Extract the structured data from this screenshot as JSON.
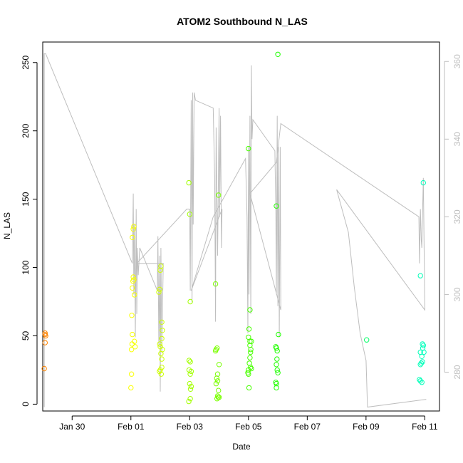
{
  "chart_data": {
    "type": "scatter",
    "title": "ATOM2 Southbound N_LAS",
    "xlabel": "Date",
    "ylabel": "N_LAS",
    "x_unit": "days relative to Feb 01",
    "xlim": [
      -3.0,
      10.5
    ],
    "ylim": [
      -5,
      265
    ],
    "y_ticks": [
      0,
      50,
      100,
      150,
      200,
      250
    ],
    "x_ticks": [
      {
        "label": "Jan 30",
        "value": -2
      },
      {
        "label": "Feb 01",
        "value": 0
      },
      {
        "label": "Feb 03",
        "value": 2
      },
      {
        "label": "Feb 05",
        "value": 4
      },
      {
        "label": "Feb 07",
        "value": 6
      },
      {
        "label": "Feb 09",
        "value": 8
      },
      {
        "label": "Feb 11",
        "value": 10
      }
    ],
    "right_axis": {
      "ylim": [
        270,
        365
      ],
      "ticks": [
        280,
        300,
        320,
        340,
        360
      ],
      "color": "#bebebe"
    },
    "right_series_line": [
      [
        -2.95,
        271
      ],
      [
        -2.95,
        362
      ],
      [
        -2.9,
        362
      ],
      [
        0.05,
        308
      ],
      [
        0.08,
        326
      ],
      [
        0.1,
        300
      ],
      [
        0.12,
        318
      ],
      [
        0.15,
        289
      ],
      [
        0.18,
        322
      ],
      [
        0.2,
        295
      ],
      [
        0.22,
        312
      ],
      [
        0.25,
        305
      ],
      [
        0.3,
        312
      ],
      [
        0.9,
        301
      ],
      [
        0.92,
        315
      ],
      [
        0.95,
        287
      ],
      [
        0.98,
        310
      ],
      [
        1.0,
        275
      ],
      [
        1.02,
        312
      ],
      [
        1.05,
        285
      ],
      [
        1.1,
        308
      ],
      [
        0.2,
        308
      ],
      [
        1.9,
        322
      ],
      [
        2.0,
        322
      ],
      [
        2.02,
        301
      ],
      [
        2.05,
        350
      ],
      [
        2.08,
        298
      ],
      [
        2.1,
        352
      ],
      [
        2.12,
        318
      ],
      [
        2.15,
        352
      ],
      [
        2.2,
        350
      ],
      [
        2.8,
        348
      ],
      [
        2.85,
        330
      ],
      [
        2.88,
        293
      ],
      [
        2.9,
        343
      ],
      [
        2.95,
        310
      ],
      [
        3.0,
        348
      ],
      [
        3.02,
        320
      ],
      [
        3.05,
        346
      ],
      [
        3.08,
        312
      ],
      [
        3.1,
        322
      ],
      [
        2.05,
        301
      ],
      [
        2.8,
        320
      ],
      [
        3.9,
        335
      ],
      [
        3.95,
        320
      ],
      [
        3.98,
        290
      ],
      [
        4.0,
        338
      ],
      [
        4.02,
        300
      ],
      [
        4.05,
        346
      ],
      [
        4.08,
        295
      ],
      [
        4.1,
        359
      ],
      [
        4.12,
        340
      ],
      [
        4.15,
        345
      ],
      [
        4.9,
        337
      ],
      [
        4.93,
        322
      ],
      [
        4.95,
        300
      ],
      [
        4.98,
        346
      ],
      [
        5.0,
        297
      ],
      [
        5.02,
        338
      ],
      [
        5.05,
        289
      ],
      [
        5.08,
        338
      ],
      [
        5.1,
        296
      ],
      [
        4.05,
        326
      ],
      [
        4.95,
        334
      ],
      [
        5.1,
        344
      ],
      [
        9.8,
        320
      ],
      [
        9.82,
        308
      ],
      [
        9.85,
        322
      ],
      [
        9.88,
        314
      ],
      [
        9.9,
        312
      ],
      [
        9.92,
        320
      ],
      [
        9.95,
        330
      ],
      [
        10.0,
        296
      ],
      [
        7.0,
        327
      ],
      [
        7.4,
        316
      ],
      [
        7.6,
        302
      ],
      [
        7.8,
        290
      ],
      [
        8.0,
        283
      ],
      [
        8.05,
        271
      ],
      [
        10.05,
        273
      ]
    ],
    "points": [
      {
        "x": -2.95,
        "y": 26
      },
      {
        "x": -2.92,
        "y": 45
      },
      {
        "x": -2.92,
        "y": 51
      },
      {
        "x": -2.92,
        "y": 52
      },
      {
        "x": -2.9,
        "y": 50
      },
      {
        "x": 0.0,
        "y": 12
      },
      {
        "x": 0.02,
        "y": 22
      },
      {
        "x": 0.02,
        "y": 40
      },
      {
        "x": 0.04,
        "y": 44
      },
      {
        "x": 0.05,
        "y": 51
      },
      {
        "x": 0.03,
        "y": 65
      },
      {
        "x": 0.05,
        "y": 85
      },
      {
        "x": 0.07,
        "y": 90
      },
      {
        "x": 0.08,
        "y": 93
      },
      {
        "x": 0.1,
        "y": 91
      },
      {
        "x": 0.12,
        "y": 80
      },
      {
        "x": 0.05,
        "y": 122
      },
      {
        "x": 0.08,
        "y": 128
      },
      {
        "x": 0.1,
        "y": 130
      },
      {
        "x": 0.12,
        "y": 46
      },
      {
        "x": 0.14,
        "y": 42
      },
      {
        "x": 0.95,
        "y": 82
      },
      {
        "x": 0.98,
        "y": 84
      },
      {
        "x": 1.0,
        "y": 98
      },
      {
        "x": 1.02,
        "y": 101
      },
      {
        "x": 1.05,
        "y": 60
      },
      {
        "x": 1.07,
        "y": 54
      },
      {
        "x": 1.0,
        "y": 42
      },
      {
        "x": 0.98,
        "y": 44
      },
      {
        "x": 1.05,
        "y": 48
      },
      {
        "x": 1.02,
        "y": 37
      },
      {
        "x": 1.05,
        "y": 33
      },
      {
        "x": 1.0,
        "y": 25
      },
      {
        "x": 0.97,
        "y": 24
      },
      {
        "x": 1.03,
        "y": 22
      },
      {
        "x": 1.05,
        "y": 27
      },
      {
        "x": 1.07,
        "y": 40
      },
      {
        "x": 1.97,
        "y": 162
      },
      {
        "x": 2.0,
        "y": 139
      },
      {
        "x": 2.02,
        "y": 75
      },
      {
        "x": 1.98,
        "y": 32
      },
      {
        "x": 2.02,
        "y": 31
      },
      {
        "x": 1.98,
        "y": 25
      },
      {
        "x": 2.02,
        "y": 22
      },
      {
        "x": 2.05,
        "y": 24
      },
      {
        "x": 2.0,
        "y": 15
      },
      {
        "x": 2.03,
        "y": 11
      },
      {
        "x": 2.05,
        "y": 13
      },
      {
        "x": 1.97,
        "y": 2
      },
      {
        "x": 2.02,
        "y": 4
      },
      {
        "x": 2.88,
        "y": 88
      },
      {
        "x": 2.88,
        "y": 39
      },
      {
        "x": 2.9,
        "y": 40
      },
      {
        "x": 2.93,
        "y": 41
      },
      {
        "x": 2.98,
        "y": 153
      },
      {
        "x": 3.0,
        "y": 29
      },
      {
        "x": 2.95,
        "y": 22
      },
      {
        "x": 2.92,
        "y": 19
      },
      {
        "x": 2.95,
        "y": 17
      },
      {
        "x": 2.9,
        "y": 15
      },
      {
        "x": 2.98,
        "y": 10
      },
      {
        "x": 2.95,
        "y": 6
      },
      {
        "x": 2.97,
        "y": 5
      },
      {
        "x": 3.0,
        "y": 5
      },
      {
        "x": 2.93,
        "y": 4
      },
      {
        "x": 4.0,
        "y": 187
      },
      {
        "x": 4.05,
        "y": 69
      },
      {
        "x": 4.02,
        "y": 55
      },
      {
        "x": 4.0,
        "y": 49
      },
      {
        "x": 4.05,
        "y": 46
      },
      {
        "x": 4.1,
        "y": 46
      },
      {
        "x": 4.05,
        "y": 43
      },
      {
        "x": 4.08,
        "y": 40
      },
      {
        "x": 4.07,
        "y": 38
      },
      {
        "x": 4.05,
        "y": 34
      },
      {
        "x": 4.03,
        "y": 30
      },
      {
        "x": 4.07,
        "y": 27
      },
      {
        "x": 4.1,
        "y": 26
      },
      {
        "x": 4.0,
        "y": 25
      },
      {
        "x": 3.98,
        "y": 23
      },
      {
        "x": 4.0,
        "y": 22
      },
      {
        "x": 4.02,
        "y": 12
      },
      {
        "x": 5.0,
        "y": 256
      },
      {
        "x": 4.95,
        "y": 145
      },
      {
        "x": 5.02,
        "y": 51
      },
      {
        "x": 4.93,
        "y": 42
      },
      {
        "x": 4.95,
        "y": 41
      },
      {
        "x": 4.98,
        "y": 39
      },
      {
        "x": 4.97,
        "y": 33
      },
      {
        "x": 4.95,
        "y": 29
      },
      {
        "x": 4.98,
        "y": 25
      },
      {
        "x": 5.0,
        "y": 23
      },
      {
        "x": 4.93,
        "y": 16
      },
      {
        "x": 4.95,
        "y": 15
      },
      {
        "x": 4.95,
        "y": 12
      },
      {
        "x": 8.02,
        "y": 47
      },
      {
        "x": 9.85,
        "y": 94
      },
      {
        "x": 9.85,
        "y": 38
      },
      {
        "x": 9.95,
        "y": 162
      },
      {
        "x": 9.92,
        "y": 44
      },
      {
        "x": 9.95,
        "y": 43
      },
      {
        "x": 9.93,
        "y": 41
      },
      {
        "x": 9.97,
        "y": 38
      },
      {
        "x": 9.9,
        "y": 35
      },
      {
        "x": 9.92,
        "y": 31
      },
      {
        "x": 9.88,
        "y": 30
      },
      {
        "x": 9.85,
        "y": 29
      },
      {
        "x": 9.82,
        "y": 18
      },
      {
        "x": 9.85,
        "y": 17
      },
      {
        "x": 9.9,
        "y": 16
      }
    ],
    "grid": false,
    "legend": "none"
  }
}
